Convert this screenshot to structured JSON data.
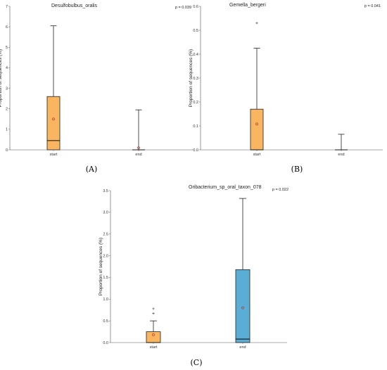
{
  "chart_data": [
    {
      "type": "box",
      "panel_label": "(A)",
      "title": "Desulfobulbus_oralis",
      "p_value_label": "p = 0.039",
      "ylabel": "Proportion of sequences (%)",
      "ylim": [
        0,
        7
      ],
      "yticks": [
        0,
        1,
        2,
        3,
        4,
        5,
        6,
        7
      ],
      "categories": [
        "start",
        "end"
      ],
      "boxes": [
        {
          "category": "start",
          "color": "#f9b55f",
          "min": 0,
          "q1": 0,
          "median": 0.45,
          "q3": 2.6,
          "max": 6.05,
          "mean": 1.5,
          "outliers": []
        },
        {
          "category": "end",
          "color": "#5aaed6",
          "min": 0,
          "q1": 0,
          "median": 0,
          "q3": 0,
          "max": 1.95,
          "mean": 0.1,
          "outliers": []
        }
      ]
    },
    {
      "type": "box",
      "panel_label": "(B)",
      "title": "Gemella_bergeri",
      "p_value_label": "p = 0.041",
      "ylabel": "Proportion of sequences (%)",
      "ylim": [
        0,
        0.6
      ],
      "yticks": [
        0.0,
        0.1,
        0.2,
        0.3,
        0.4,
        0.5,
        0.6
      ],
      "categories": [
        "start",
        "end"
      ],
      "boxes": [
        {
          "category": "start",
          "color": "#f9b55f",
          "min": 0,
          "q1": 0,
          "median": 0,
          "q3": 0.17,
          "max": 0.425,
          "mean": 0.108,
          "outliers": [
            0.53
          ]
        },
        {
          "category": "end",
          "color": "#5aaed6",
          "min": 0,
          "q1": 0,
          "median": 0,
          "q3": 0,
          "max": 0.065,
          "mean": null,
          "outliers": []
        }
      ]
    },
    {
      "type": "box",
      "panel_label": "(C)",
      "title": "Oribacterium_sp_oral_taxon_078",
      "p_value_label": "p = 0.022",
      "ylabel": "Proportion of sequences (%)",
      "ylim": [
        0,
        3.5
      ],
      "yticks": [
        0.0,
        0.5,
        1.0,
        1.5,
        2.0,
        2.5,
        3.0,
        3.5
      ],
      "categories": [
        "start",
        "end"
      ],
      "boxes": [
        {
          "category": "start",
          "color": "#f9b55f",
          "min": 0,
          "q1": 0,
          "median": 0,
          "q3": 0.25,
          "max": 0.5,
          "mean": 0.18,
          "outliers": [
            0.67,
            0.78
          ]
        },
        {
          "category": "end",
          "color": "#5aaed6",
          "min": 0,
          "q1": 0,
          "median": 0.08,
          "q3": 1.68,
          "max": 3.32,
          "mean": 0.8,
          "outliers": []
        }
      ]
    }
  ]
}
